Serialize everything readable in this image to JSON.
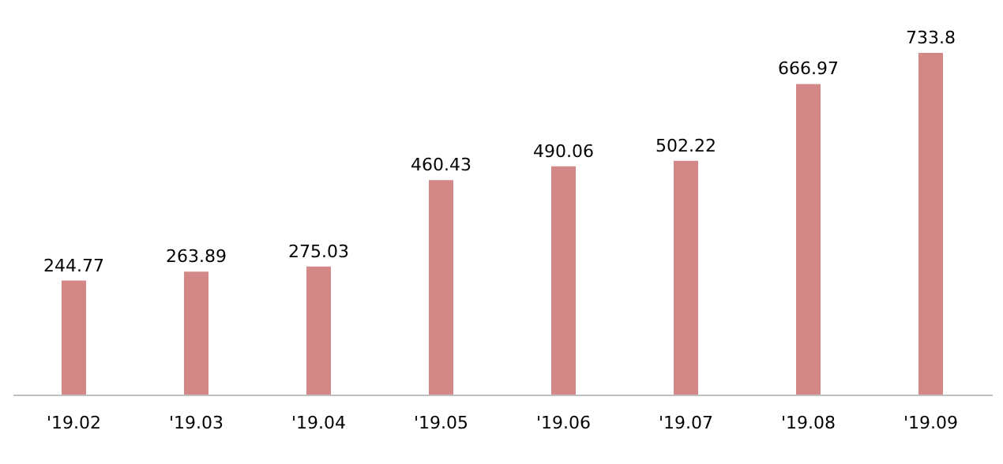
{
  "chart_data": {
    "type": "bar",
    "categories": [
      "'19.02",
      "'19.03",
      "'19.04",
      "'19.05",
      "'19.06",
      "'19.07",
      "'19.08",
      "'19.09"
    ],
    "values": [
      244.77,
      263.89,
      275.03,
      460.43,
      490.06,
      502.22,
      666.97,
      733.8
    ],
    "color": "#d48787",
    "data_labels": true
  }
}
